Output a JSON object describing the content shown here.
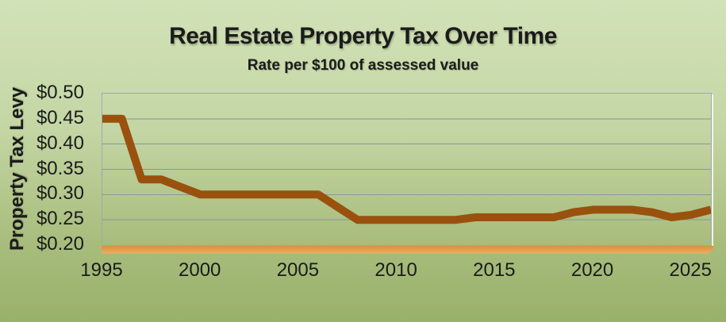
{
  "title": "Real Estate Property Tax Over Time",
  "subtitle": "Rate per $100 of assessed value",
  "colors": {
    "background_top": "#d2e2b8",
    "background_bottom": "#98b16b",
    "line": "#9a510e",
    "baseline_bar": "#e2a252",
    "gridline": "#87979d",
    "plot_border": "#9aabb2",
    "text": "#1b1b1b"
  },
  "chart_data": {
    "type": "line",
    "title": "Real Estate Property Tax Over Time",
    "subtitle": "Rate per $100 of assessed value",
    "xlabel": "",
    "ylabel": "Property Tax Levy",
    "series_name": "Property Tax Levy (rate per $100 of assessed value)",
    "x": [
      1995,
      1996,
      1997,
      1998,
      1999,
      2000,
      2001,
      2002,
      2003,
      2004,
      2005,
      2006,
      2007,
      2008,
      2009,
      2010,
      2011,
      2012,
      2013,
      2014,
      2015,
      2016,
      2017,
      2018,
      2019,
      2020,
      2021,
      2022,
      2023,
      2024,
      2025,
      2026
    ],
    "values": [
      0.45,
      0.45,
      0.33,
      0.33,
      0.315,
      0.3,
      0.3,
      0.3,
      0.3,
      0.3,
      0.3,
      0.3,
      0.275,
      0.25,
      0.25,
      0.25,
      0.25,
      0.25,
      0.25,
      0.255,
      0.255,
      0.255,
      0.255,
      0.255,
      0.265,
      0.27,
      0.27,
      0.27,
      0.265,
      0.255,
      0.26,
      0.27
    ],
    "ylim": [
      0.2,
      0.5
    ],
    "yticks": [
      0.5,
      0.45,
      0.4,
      0.35,
      0.3,
      0.25,
      0.2
    ],
    "ytick_labels": [
      "$0.50",
      "$0.45",
      "$0.40",
      "$0.35",
      "$0.30",
      "$0.25",
      "$0.20"
    ],
    "xticks": [
      1995,
      2000,
      2005,
      2010,
      2015,
      2020,
      2025
    ],
    "grid": true,
    "legend": false
  }
}
